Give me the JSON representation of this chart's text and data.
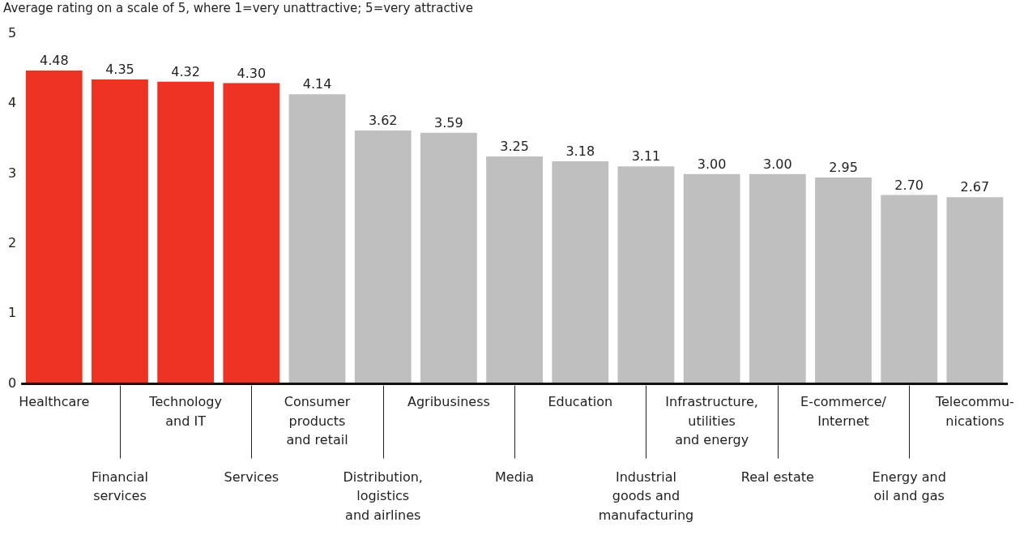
{
  "chart_data": {
    "type": "bar",
    "title": "Average rating on a scale of 5, where 1=very unattractive; 5=very attractive",
    "categories": [
      "Healthcare",
      "Financial\nservices",
      "Technology\nand IT",
      "Services",
      "Consumer\nproducts\nand retail",
      "Distribution,\nlogistics\nand airlines",
      "Agribusiness",
      "Media",
      "Education",
      "Industrial\ngoods and\nmanufacturing",
      "Infrastructure,\nutilities\nand energy",
      "Real estate",
      "E-commerce/\nInternet",
      "Energy and\noil and gas",
      "Telecommu-\nnications"
    ],
    "values": [
      4.48,
      4.35,
      4.32,
      4.3,
      4.14,
      3.62,
      3.59,
      3.25,
      3.18,
      3.11,
      3.0,
      3.0,
      2.95,
      2.7,
      2.67
    ],
    "colors": [
      "#ee3224",
      "#ee3224",
      "#ee3224",
      "#ee3224",
      "#bfbfbf",
      "#bfbfbf",
      "#bfbfbf",
      "#bfbfbf",
      "#bfbfbf",
      "#bfbfbf",
      "#bfbfbf",
      "#bfbfbf",
      "#bfbfbf",
      "#bfbfbf",
      "#bfbfbf"
    ],
    "ylim": [
      0,
      5
    ],
    "yticks": [
      0,
      1,
      2,
      3,
      4,
      5
    ],
    "value_labels": [
      "4.48",
      "4.35",
      "4.32",
      "4.30",
      "4.14",
      "3.62",
      "3.59",
      "3.25",
      "3.18",
      "3.11",
      "3.00",
      "3.00",
      "2.95",
      "2.70",
      "2.67"
    ]
  }
}
